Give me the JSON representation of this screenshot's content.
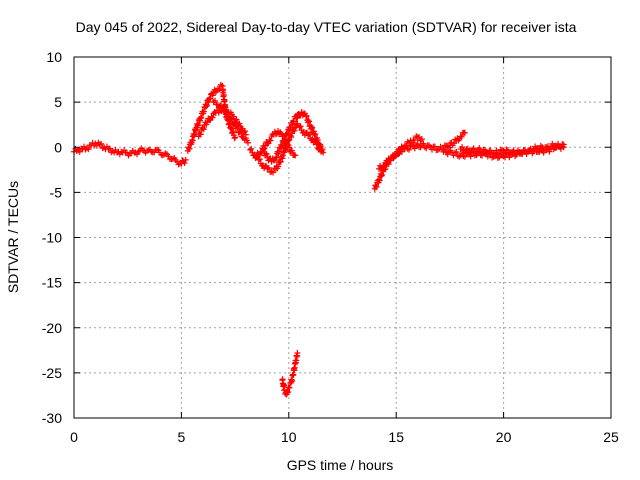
{
  "chart_data": {
    "type": "scatter",
    "title": "Day 045 of 2022, Sidereal Day-to-day VTEC variation (SDTVAR) for receiver ista",
    "xlabel": "GPS time / hours",
    "ylabel": "SDTVAR / TECUs",
    "xlim": [
      0,
      25
    ],
    "ylim": [
      -30,
      10
    ],
    "xticks": [
      0,
      5,
      10,
      15,
      20,
      25
    ],
    "yticks": [
      10,
      5,
      0,
      -5,
      -10,
      -15,
      -20,
      -25,
      -30
    ],
    "grid": true,
    "marker": "+",
    "series_color": "#ff0000",
    "series": [
      {
        "name": "seg1",
        "x": [
          0,
          0.2,
          0.4,
          0.6,
          0.8,
          1.0,
          1.2,
          1.4,
          1.6,
          1.8,
          2.0,
          2.2,
          2.4,
          2.6,
          2.8,
          3.0,
          3.2,
          3.4,
          3.6,
          3.8,
          4.0,
          4.2,
          4.4,
          4.6,
          4.8,
          5.0,
          5.2
        ],
        "y": [
          -0.5,
          -0.3,
          -0.2,
          -0.1,
          0.2,
          0.4,
          0.3,
          0.0,
          -0.2,
          -0.4,
          -0.6,
          -0.5,
          -0.6,
          -0.7,
          -0.6,
          -0.5,
          -0.3,
          -0.4,
          -0.5,
          -0.3,
          -0.6,
          -0.8,
          -1.0,
          -1.3,
          -1.6,
          -1.8,
          -1.4
        ]
      },
      {
        "name": "seg2",
        "x": [
          5.3,
          5.5,
          5.7,
          5.9,
          6.1,
          6.3,
          6.5,
          6.7,
          6.9,
          7.1,
          7.3,
          7.5
        ],
        "y": [
          -0.4,
          0.8,
          2.2,
          3.3,
          4.4,
          5.4,
          6.1,
          6.5,
          6.8,
          3.4,
          2.1,
          1.1
        ]
      },
      {
        "name": "seg3",
        "x": [
          5.8,
          6.0,
          6.2,
          6.4,
          6.6,
          6.8,
          7.0,
          7.2,
          7.4,
          7.6,
          7.8,
          8.0
        ],
        "y": [
          1.2,
          2.1,
          2.8,
          3.4,
          3.8,
          4.1,
          4.4,
          3.9,
          3.4,
          2.7,
          2.1,
          1.4
        ]
      },
      {
        "name": "seg4",
        "x": [
          6.5,
          6.7,
          6.9,
          7.1,
          7.3,
          7.5,
          7.7,
          7.9,
          8.1
        ],
        "y": [
          5.0,
          4.7,
          4.3,
          3.9,
          3.1,
          2.4,
          1.7,
          1.1,
          0.5
        ]
      },
      {
        "name": "seg5",
        "x": [
          8.2,
          8.4,
          8.6,
          8.8,
          9.0,
          9.2,
          9.4,
          9.6,
          9.8,
          10.0,
          10.2,
          10.4
        ],
        "y": [
          -0.3,
          -0.8,
          -1.4,
          -2.0,
          -2.4,
          -2.7,
          -2.4,
          -1.6,
          -0.4,
          0.8,
          1.8,
          2.6
        ]
      },
      {
        "name": "seg6",
        "x": [
          8.5,
          8.7,
          8.9,
          9.1,
          9.3,
          9.5,
          9.7,
          9.9,
          10.1,
          10.3
        ],
        "y": [
          -1.0,
          -0.5,
          0.2,
          0.8,
          1.4,
          1.8,
          1.2,
          0.3,
          -0.4,
          -0.9
        ]
      },
      {
        "name": "seg7",
        "x": [
          8.8,
          9.0,
          9.2,
          9.4,
          9.6,
          9.8,
          10.0,
          10.2,
          10.4
        ],
        "y": [
          -0.3,
          -1.1,
          -1.6,
          -1.1,
          -0.1,
          0.9,
          1.9,
          2.9,
          3.6
        ]
      },
      {
        "name": "seg8",
        "x": [
          10.4,
          10.6,
          10.8,
          11.0,
          11.2,
          11.4,
          11.6
        ],
        "y": [
          3.3,
          3.9,
          3.4,
          2.4,
          1.4,
          0.4,
          -0.6
        ]
      },
      {
        "name": "seg9",
        "x": [
          10.5,
          10.7,
          10.9,
          11.1,
          11.3,
          11.5
        ],
        "y": [
          2.2,
          1.7,
          1.3,
          0.9,
          0.3,
          -0.5
        ]
      },
      {
        "name": "seg10",
        "x": [
          9.7,
          9.8,
          9.9,
          10.0,
          10.1,
          10.2,
          10.3,
          10.4
        ],
        "y": [
          -25.8,
          -26.9,
          -27.4,
          -26.6,
          -26.1,
          -25.2,
          -24.0,
          -22.8
        ]
      },
      {
        "name": "seg11",
        "x": [
          14.0,
          14.2,
          14.4,
          14.6,
          14.8,
          15.0,
          15.2,
          15.4,
          15.6,
          15.8,
          16.0,
          16.2
        ],
        "y": [
          -4.6,
          -3.6,
          -2.6,
          -1.8,
          -1.2,
          -0.7,
          -0.2,
          0.2,
          0.5,
          0.8,
          1.1,
          0.9
        ]
      },
      {
        "name": "seg12",
        "x": [
          14.2,
          14.4,
          14.6,
          14.8,
          15.0,
          15.2,
          15.4
        ],
        "y": [
          -2.4,
          -2.0,
          -1.6,
          -1.1,
          -0.8,
          -0.4,
          -0.1
        ]
      },
      {
        "name": "seg13",
        "x": [
          15.4,
          15.8,
          16.2,
          16.6,
          17.0,
          17.4,
          17.8,
          18.0,
          18.2
        ],
        "y": [
          -0.2,
          0.1,
          0.2,
          0.0,
          -0.2,
          0.1,
          0.7,
          1.2,
          1.6
        ]
      },
      {
        "name": "seg14",
        "x": [
          17.2,
          17.6,
          18.0,
          18.4,
          18.8,
          19.2,
          19.6,
          20.0,
          20.4,
          20.8,
          21.2,
          21.6,
          22.0,
          22.4,
          22.8
        ],
        "y": [
          -0.5,
          -0.6,
          -0.9,
          -0.8,
          -0.7,
          -0.8,
          -1.0,
          -1.0,
          -0.8,
          -0.7,
          -0.4,
          -0.5,
          -0.3,
          -0.1,
          0.3
        ]
      },
      {
        "name": "seg15",
        "x": [
          18.0,
          18.4,
          18.8,
          19.2,
          19.6,
          20.0,
          20.4,
          20.8,
          21.2,
          21.6,
          22.0,
          22.4,
          22.8
        ],
        "y": [
          -0.2,
          -0.4,
          -0.3,
          -0.5,
          -0.6,
          -0.4,
          -0.5,
          -0.6,
          -0.3,
          -0.1,
          0.0,
          0.2,
          0.0
        ]
      }
    ]
  }
}
